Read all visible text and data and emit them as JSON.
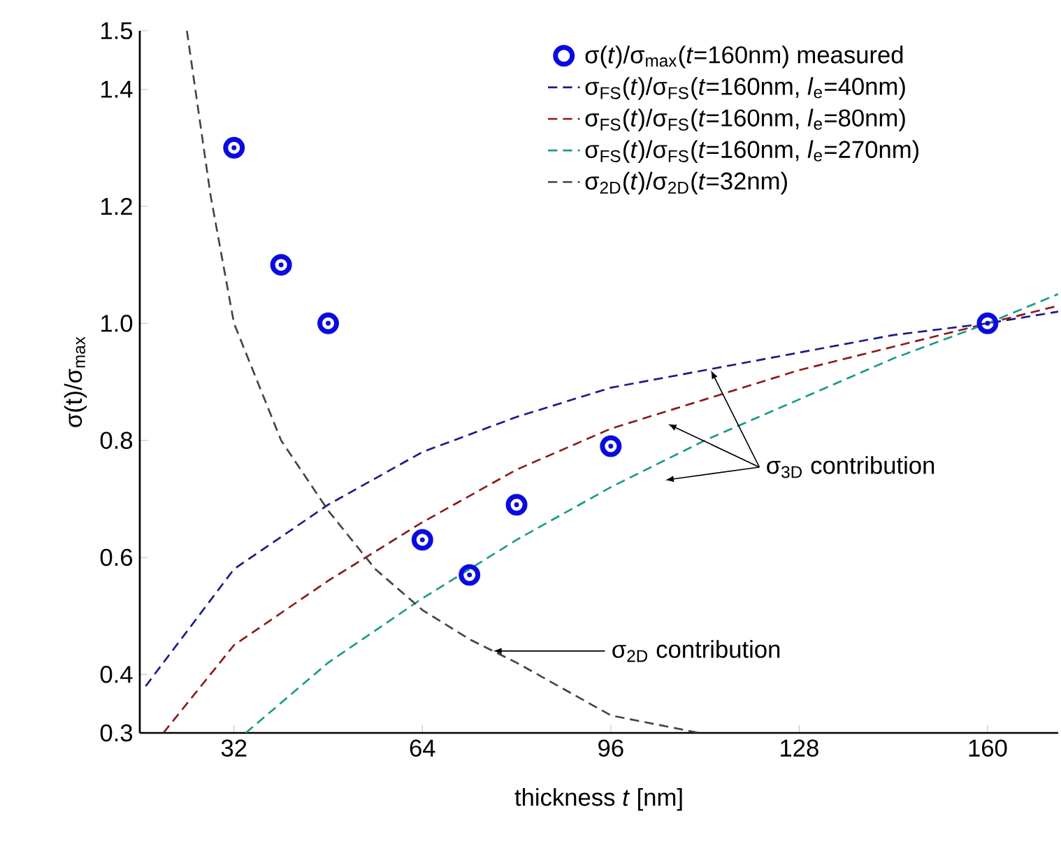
{
  "chart_data": {
    "type": "line",
    "xlabel": "thickness *t* [nm]",
    "ylabel": "σ(t)/σ$_{max}$",
    "xlim": [
      16,
      172
    ],
    "ylim": [
      0.3,
      1.5
    ],
    "xticks": [
      32,
      64,
      96,
      128,
      160
    ],
    "yticks": [
      {
        "value": 0.3,
        "label": "0.3"
      },
      {
        "value": 0.4,
        "label": "0.4"
      },
      {
        "value": 0.6,
        "label": "0.6"
      },
      {
        "value": 0.8,
        "label": "0.8"
      },
      {
        "value": 1.0,
        "label": "1.0"
      },
      {
        "value": 1.2,
        "label": "1.2"
      },
      {
        "value": 1.4,
        "label": "1.4"
      },
      {
        "value": 1.5,
        "label": "1.5"
      }
    ],
    "legend": "top right",
    "grid": false,
    "series": [
      {
        "name": "σ(*t*)/σ$_{max}$(*t*=160nm) measured",
        "type": "scatter",
        "marker": "circle",
        "color": "#0a0ae0",
        "x": [
          32,
          40,
          48,
          64,
          72,
          80,
          96,
          160
        ],
        "values": [
          1.3,
          1.1,
          1.0,
          0.63,
          0.57,
          0.69,
          0.79,
          1.0
        ]
      },
      {
        "name": "σ$_{FS}$(*t*)/σ$_{FS}$(*t*=160nm, *l*$_{e}$=40nm)",
        "line_style": "dashed",
        "color": "#1a1a8c",
        "x": [
          17,
          32,
          48,
          64,
          80,
          96,
          112,
          128,
          144,
          160,
          172
        ],
        "values": [
          0.38,
          0.58,
          0.69,
          0.78,
          0.84,
          0.89,
          0.92,
          0.95,
          0.98,
          1.0,
          1.02
        ]
      },
      {
        "name": "σ$_{FS}$(*t*)/σ$_{FS}$(*t*=160nm, *l*$_{e}$=80nm)",
        "line_style": "dashed",
        "color": "#8b1a1a",
        "x": [
          20,
          32,
          48,
          64,
          80,
          96,
          112,
          128,
          144,
          160,
          172
        ],
        "values": [
          0.3,
          0.45,
          0.56,
          0.66,
          0.75,
          0.82,
          0.87,
          0.92,
          0.96,
          1.0,
          1.03
        ]
      },
      {
        "name": "σ$_{FS}$(*t*)/σ$_{FS}$(*t*=160nm, *l*$_{e}$=270nm)",
        "line_style": "dashed",
        "color": "#1a9a8a",
        "x": [
          34,
          48,
          64,
          80,
          96,
          112,
          128,
          144,
          160,
          172
        ],
        "values": [
          0.3,
          0.42,
          0.53,
          0.63,
          0.72,
          0.8,
          0.87,
          0.94,
          1.0,
          1.05
        ]
      },
      {
        "name": "σ$_{2D}$(*t*)/σ$_{2D}$(*t*=32nm)",
        "line_style": "dashed",
        "color": "#444444",
        "x": [
          24,
          28,
          32,
          40,
          48,
          56,
          64,
          72,
          80,
          96,
          111
        ],
        "values": [
          1.5,
          1.22,
          1.0,
          0.8,
          0.68,
          0.58,
          0.51,
          0.46,
          0.42,
          0.33,
          0.3
        ]
      }
    ],
    "annotations": [
      {
        "text": "σ$_{3D}$ contribution",
        "x": 113,
        "y": 0.92
      },
      {
        "text": "σ$_{2D}$ contribution",
        "x": 76,
        "y": 0.44
      }
    ]
  }
}
